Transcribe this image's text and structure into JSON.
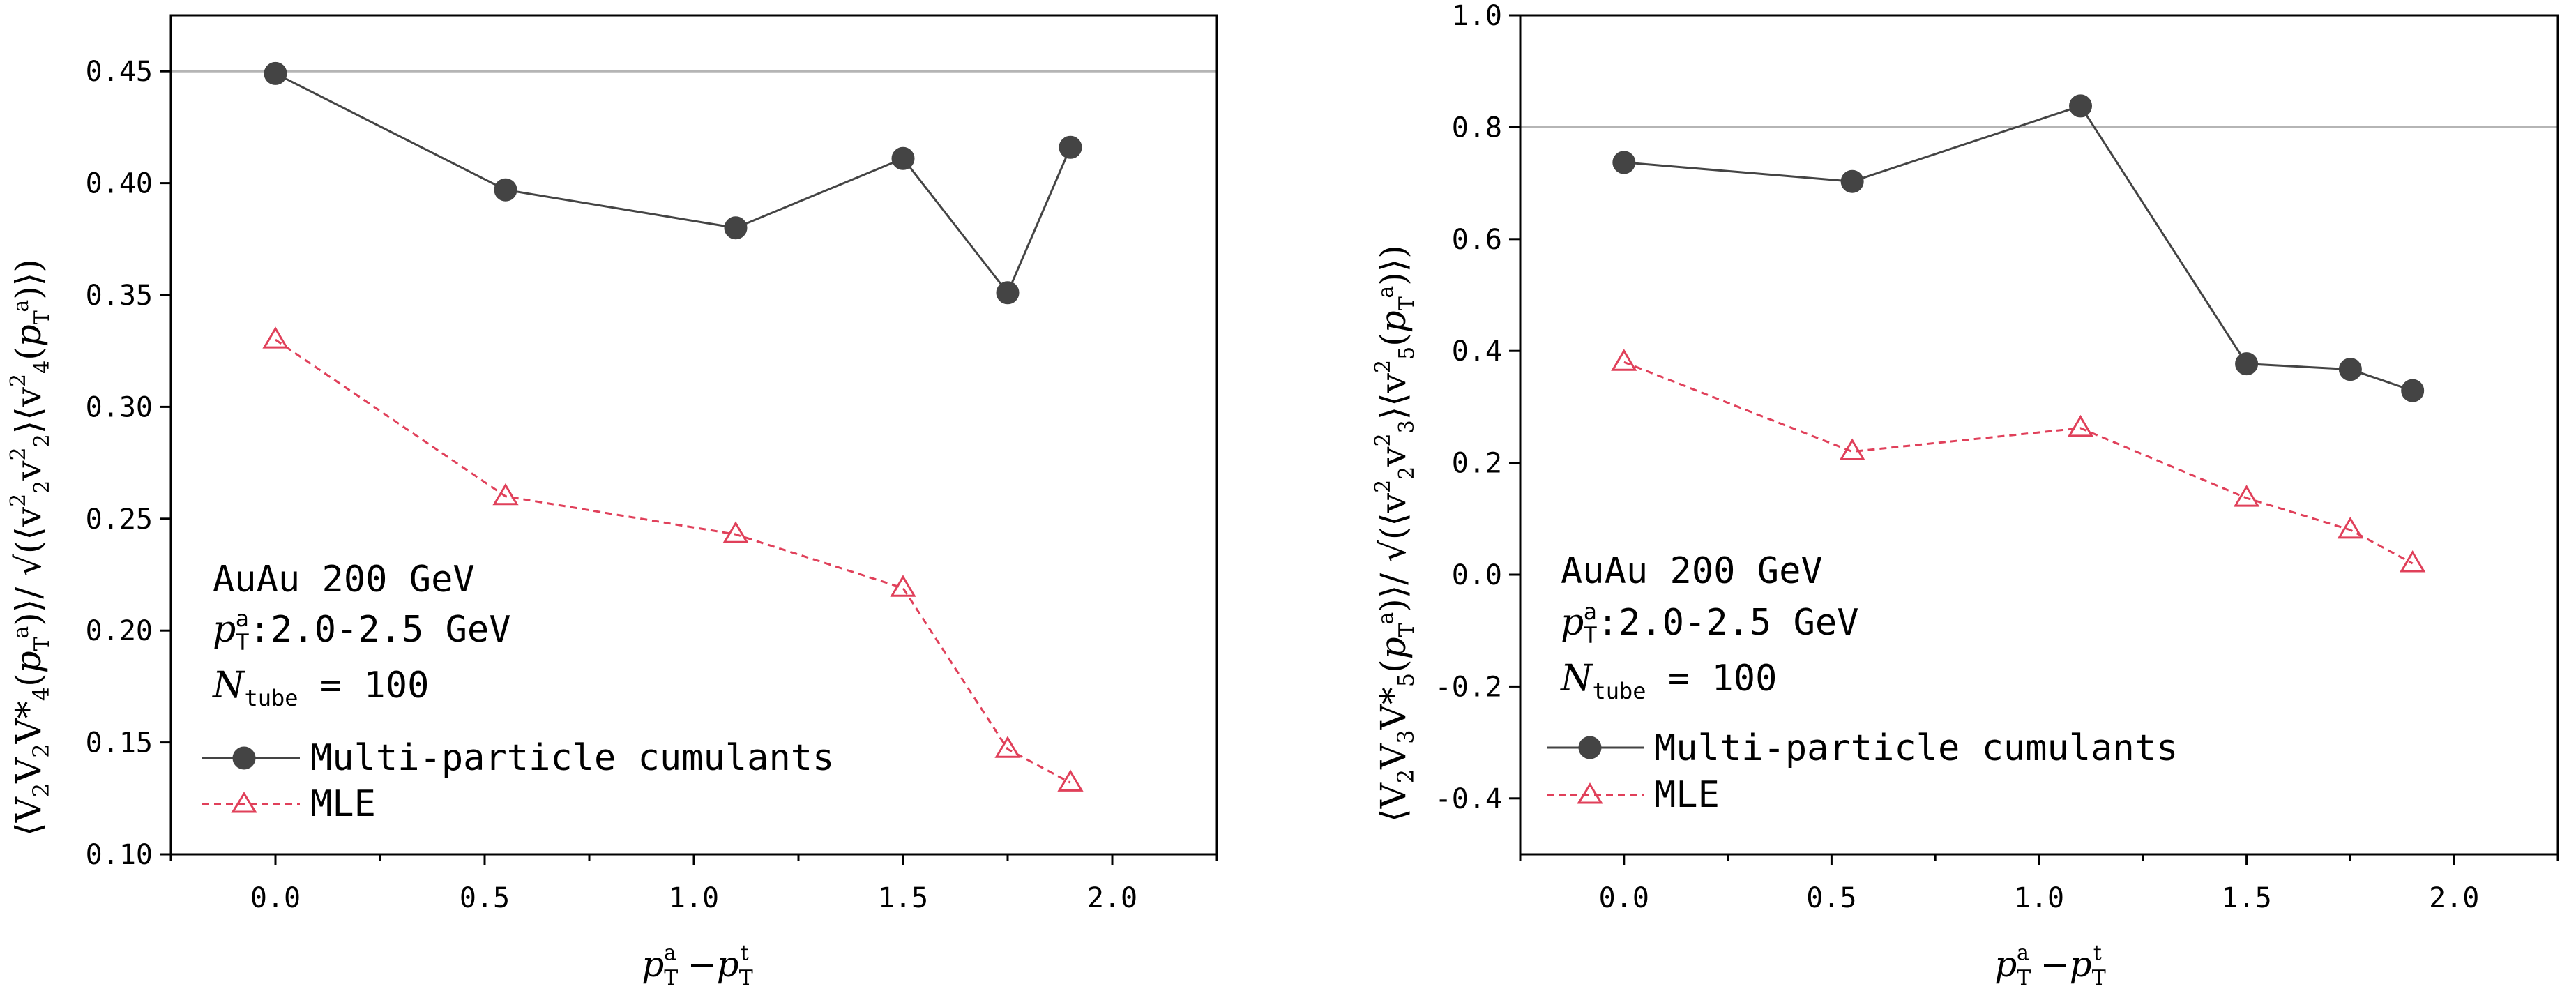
{
  "chart_data": [
    {
      "type": "line",
      "xlabel": "p_T^a − p_T^t",
      "ylabel": "⟨V2V2V4*(p_T^a)⟩ / √(⟨v2²v2²⟩⟨v4²(p_T^a)⟩)",
      "xlim": [
        -0.25,
        2.25
      ],
      "ylim": [
        0.1,
        0.475
      ],
      "xticks": [
        "0.0",
        "0.5",
        "1.0",
        "1.5",
        "2.0"
      ],
      "yticks": [
        "0.10",
        "0.15",
        "0.20",
        "0.25",
        "0.30",
        "0.35",
        "0.40",
        "0.45"
      ],
      "reference_line": 0.45,
      "series": [
        {
          "name": "Multi-particle cumulants",
          "color": "#444444",
          "marker": "filled-circle",
          "style": "solid",
          "x": [
            0.0,
            0.55,
            1.1,
            1.5,
            1.75,
            1.9
          ],
          "y": [
            0.449,
            0.397,
            0.38,
            0.411,
            0.351,
            0.416
          ]
        },
        {
          "name": "MLE",
          "color": "#e0405a",
          "marker": "open-triangle",
          "style": "dashed",
          "x": [
            0.0,
            0.55,
            1.1,
            1.5,
            1.75,
            1.9
          ],
          "y": [
            0.33,
            0.26,
            0.243,
            0.219,
            0.147,
            0.132
          ]
        }
      ],
      "annotation": {
        "line1": "AuAu 200 GeV",
        "line2_value": ":2.0-2.5 GeV",
        "line3_value": " = 100"
      },
      "legend_placement": "bottom-left"
    },
    {
      "type": "line",
      "xlabel": "p_T^a − p_T^t",
      "ylabel": "⟨V2V3V5*(p_T^a)⟩ / √(⟨v2²v3²⟩⟨v5²(p_T^a)⟩)",
      "xlim": [
        -0.25,
        2.25
      ],
      "ylim": [
        -0.5,
        1.0
      ],
      "xticks": [
        "0.0",
        "0.5",
        "1.0",
        "1.5",
        "2.0"
      ],
      "yticks": [
        "-0.4",
        "-0.2",
        "0.0",
        "0.2",
        "0.4",
        "0.6",
        "0.8",
        "1.0"
      ],
      "reference_line": 0.8,
      "series": [
        {
          "name": "Multi-particle cumulants",
          "color": "#444444",
          "marker": "filled-circle",
          "style": "solid",
          "x": [
            0.0,
            0.55,
            1.1,
            1.5,
            1.75,
            1.9
          ],
          "y": [
            0.737,
            0.703,
            0.838,
            0.377,
            0.367,
            0.329
          ]
        },
        {
          "name": "MLE",
          "color": "#e0405a",
          "marker": "open-triangle",
          "style": "dashed",
          "x": [
            0.0,
            0.55,
            1.1,
            1.5,
            1.75,
            1.9
          ],
          "y": [
            0.38,
            0.22,
            0.262,
            0.137,
            0.08,
            0.02
          ]
        }
      ],
      "annotation": {
        "line1": "AuAu 200 GeV",
        "line2_value": ":2.0-2.5 GeV",
        "line3_value": " = 100"
      },
      "legend_placement": "bottom-left"
    }
  ]
}
